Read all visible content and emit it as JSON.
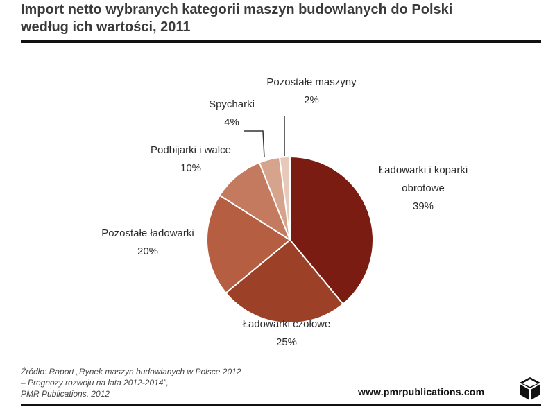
{
  "header": {
    "title_line1": "Import netto wybranych kategorii maszyn budowlanych do Polski",
    "title_line2": "według ich wartości, 2011"
  },
  "footer": {
    "source_line1": "Źródło: Raport „Rynek maszyn budowlanych w Polsce 2012",
    "source_line2": "– Prognozy rozwoju na lata 2012-2014”,",
    "source_line3": "PMR Publications, 2012",
    "website": "www.pmrpublications.com",
    "logo_icon": "cube-logo-icon"
  },
  "chart_data": {
    "type": "pie",
    "unit": "%",
    "slices": [
      {
        "label": [
          "Ładowarki i koparki",
          "obrotowe"
        ],
        "value": 39,
        "value_label": "39%",
        "color": "#7a1c12"
      },
      {
        "label": [
          "Ładowarki czołowe"
        ],
        "value": 25,
        "value_label": "25%",
        "color": "#9c4028"
      },
      {
        "label": [
          "Pozostałe ładowarki"
        ],
        "value": 20,
        "value_label": "20%",
        "color": "#b55e42"
      },
      {
        "label": [
          "Podbijarki i walce"
        ],
        "value": 10,
        "value_label": "10%",
        "color": "#c47a5e"
      },
      {
        "label": [
          "Spycharki"
        ],
        "value": 4,
        "value_label": "4%",
        "color": "#d6a48c"
      },
      {
        "label": [
          "Pozostałe maszyny"
        ],
        "value": 2,
        "value_label": "2%",
        "color": "#e8c8b8"
      }
    ]
  }
}
